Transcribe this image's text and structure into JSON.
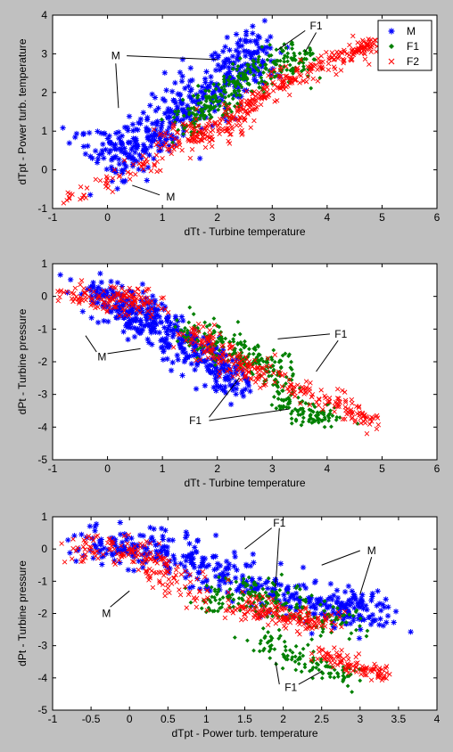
{
  "figure_background": "#c0c0c0",
  "marker_colors": {
    "M": "#0000ff",
    "F1": "#008000",
    "F2": "#ff0000"
  },
  "chart_data": [
    {
      "type": "scatter",
      "xlabel": "dTt - Turbine temperature",
      "ylabel": "dTpt - Power turb. temperature",
      "xlim": [
        -1,
        6
      ],
      "ylim": [
        -1,
        4
      ],
      "xticks": [
        "-1",
        "0",
        "1",
        "2",
        "3",
        "4",
        "5",
        "6"
      ],
      "yticks": [
        "-1",
        "0",
        "1",
        "2",
        "3",
        "4"
      ],
      "legend": {
        "position": "top-right",
        "entries": [
          "M",
          "F1",
          "F2"
        ]
      },
      "series": [
        {
          "name": "M",
          "marker": "asterisk",
          "color": "#0000ff",
          "clusters": [
            {
              "x": [
                0.0,
                0.8,
                1.5,
                2.3,
                2.8
              ],
              "y": [
                0.2,
                0.9,
                1.6,
                2.5,
                3.1
              ],
              "count": 420,
              "spread": 0.35
            },
            {
              "x": [
                -0.5,
                0.4
              ],
              "y": [
                0.8,
                0.4
              ],
              "count": 40,
              "spread": 0.25
            }
          ]
        },
        {
          "name": "F1",
          "marker": "diamond",
          "color": "#008000",
          "clusters": [
            {
              "x": [
                1.3,
                2.0,
                2.7,
                3.6
              ],
              "y": [
                1.1,
                1.8,
                2.6,
                2.9
              ],
              "count": 300,
              "spread": 0.25
            }
          ]
        },
        {
          "name": "F2",
          "marker": "x",
          "color": "#ff0000",
          "clusters": [
            {
              "x": [
                -0.8,
                0.5,
                1.0
              ],
              "y": [
                -0.8,
                0.0,
                0.3
              ],
              "count": 50,
              "spread": 0.12
            },
            {
              "x": [
                1.0,
                1.8,
                2.6
              ],
              "y": [
                0.7,
                0.9,
                1.6
              ],
              "count": 170,
              "spread": 0.2
            },
            {
              "x": [
                2.6,
                3.6,
                4.7
              ],
              "y": [
                1.7,
                2.6,
                3.1
              ],
              "count": 170,
              "spread": 0.15
            },
            {
              "x": [
                4.4,
                4.9
              ],
              "y": [
                3.0,
                3.3
              ],
              "count": 40,
              "spread": 0.08
            }
          ]
        }
      ],
      "annotations": [
        {
          "text": "M",
          "at": [
            0.15,
            2.95
          ],
          "lines": [
            [
              [
                0.35,
                2.95
              ],
              [
                2.0,
                2.85
              ]
            ],
            [
              [
                0.15,
                2.75
              ],
              [
                0.2,
                1.6
              ]
            ]
          ]
        },
        {
          "text": "M",
          "at": [
            1.15,
            -0.7
          ],
          "lines": [
            [
              [
                0.95,
                -0.65
              ],
              [
                0.45,
                -0.4
              ]
            ]
          ]
        },
        {
          "text": "F1",
          "at": [
            3.8,
            3.72
          ],
          "lines": [
            [
              [
                3.6,
                3.6
              ],
              [
                3.1,
                3.1
              ]
            ],
            [
              [
                3.8,
                3.55
              ],
              [
                3.6,
                3.05
              ]
            ]
          ]
        }
      ]
    },
    {
      "type": "scatter",
      "xlabel": "dTt - Turbine temperature",
      "ylabel": "dPt - Turbine pressure",
      "xlim": [
        -1,
        6
      ],
      "ylim": [
        -5,
        1
      ],
      "xticks": [
        "-1",
        "0",
        "1",
        "2",
        "3",
        "4",
        "5",
        "6"
      ],
      "yticks": [
        "-5",
        "-4",
        "-3",
        "-2",
        "-1",
        "0",
        "1"
      ],
      "series": [
        {
          "name": "M",
          "marker": "asterisk",
          "color": "#0000ff",
          "clusters": [
            {
              "x": [
                -0.3,
                0.5,
                1.2,
                1.8,
                2.3
              ],
              "y": [
                0.2,
                -0.5,
                -1.1,
                -1.9,
                -2.6
              ],
              "count": 420,
              "spread": 0.3
            }
          ]
        },
        {
          "name": "F1",
          "marker": "diamond",
          "color": "#008000",
          "clusters": [
            {
              "x": [
                1.5,
                2.5,
                3.2
              ],
              "y": [
                -1.0,
                -1.8,
                -2.4
              ],
              "count": 190,
              "spread": 0.25
            },
            {
              "x": [
                3.0,
                3.6,
                4.1
              ],
              "y": [
                -2.9,
                -3.6,
                -3.8
              ],
              "count": 110,
              "spread": 0.2
            }
          ]
        },
        {
          "name": "F2",
          "marker": "x",
          "color": "#ff0000",
          "clusters": [
            {
              "x": [
                -0.8,
                0.3,
                0.9
              ],
              "y": [
                0.0,
                -0.1,
                -0.2
              ],
              "count": 140,
              "spread": 0.22
            },
            {
              "x": [
                1.5,
                2.2,
                3.0
              ],
              "y": [
                -1.1,
                -1.9,
                -2.5
              ],
              "count": 150,
              "spread": 0.22
            },
            {
              "x": [
                3.2,
                4.2,
                4.9
              ],
              "y": [
                -2.6,
                -3.3,
                -3.9
              ],
              "count": 110,
              "spread": 0.15
            }
          ]
        }
      ],
      "annotations": [
        {
          "text": "M",
          "at": [
            -0.1,
            -1.85
          ],
          "lines": [
            [
              [
                -0.2,
                -1.7
              ],
              [
                -0.4,
                -1.2
              ]
            ],
            [
              [
                0.0,
                -1.75
              ],
              [
                0.6,
                -1.6
              ]
            ]
          ]
        },
        {
          "text": "F1",
          "at": [
            4.25,
            -1.15
          ],
          "lines": [
            [
              [
                4.05,
                -1.15
              ],
              [
                3.1,
                -1.3
              ]
            ],
            [
              [
                4.2,
                -1.35
              ],
              [
                3.8,
                -2.3
              ]
            ]
          ]
        },
        {
          "text": "F1",
          "at": [
            1.6,
            -3.8
          ],
          "lines": [
            [
              [
                1.85,
                -3.7
              ],
              [
                2.4,
                -2.5
              ]
            ],
            [
              [
                1.85,
                -3.8
              ],
              [
                3.3,
                -3.45
              ]
            ]
          ]
        }
      ]
    },
    {
      "type": "scatter",
      "xlabel": "dTpt - Power turb. temperature",
      "ylabel": "dPt - Turbine pressure",
      "xlim": [
        -1,
        4
      ],
      "ylim": [
        -5,
        1
      ],
      "xticks": [
        "-1",
        "-0.5",
        "0",
        "0.5",
        "1",
        "1.5",
        "2",
        "2.5",
        "3",
        "3.5",
        "4"
      ],
      "yticks": [
        "-5",
        "-4",
        "-3",
        "-2",
        "-1",
        "0",
        "1"
      ],
      "series": [
        {
          "name": "M",
          "marker": "asterisk",
          "color": "#0000ff",
          "clusters": [
            {
              "x": [
                -0.6,
                0.3,
                1.0,
                1.8,
                2.6,
                3.2
              ],
              "y": [
                0.0,
                0.1,
                -0.6,
                -1.3,
                -1.8,
                -2.0
              ],
              "count": 440,
              "spread": 0.3
            }
          ]
        },
        {
          "name": "F1",
          "marker": "diamond",
          "color": "#008000",
          "clusters": [
            {
              "x": [
                0.9,
                1.5,
                2.2,
                2.9
              ],
              "y": [
                -1.6,
                -1.3,
                -1.9,
                -2.4
              ],
              "count": 200,
              "spread": 0.25
            },
            {
              "x": [
                1.7,
                2.4,
                3.0
              ],
              "y": [
                -2.9,
                -3.6,
                -3.9
              ],
              "count": 110,
              "spread": 0.2
            }
          ]
        },
        {
          "name": "F2",
          "marker": "x",
          "color": "#ff0000",
          "clusters": [
            {
              "x": [
                -0.8,
                0.0,
                0.5,
                1.0
              ],
              "y": [
                0.0,
                0.0,
                -0.8,
                -1.5
              ],
              "count": 170,
              "spread": 0.22
            },
            {
              "x": [
                1.4,
                2.0,
                2.5
              ],
              "y": [
                -1.8,
                -2.0,
                -2.4
              ],
              "count": 160,
              "spread": 0.2
            },
            {
              "x": [
                2.5,
                3.0,
                3.4
              ],
              "y": [
                -3.2,
                -3.7,
                -4.0
              ],
              "count": 100,
              "spread": 0.12
            }
          ]
        }
      ],
      "annotations": [
        {
          "text": "M",
          "at": [
            -0.3,
            -2.0
          ],
          "lines": [
            [
              [
                -0.25,
                -1.8
              ],
              [
                0.0,
                -1.3
              ]
            ]
          ]
        },
        {
          "text": "F1",
          "at": [
            1.95,
            0.8
          ],
          "lines": [
            [
              [
                1.85,
                0.65
              ],
              [
                1.5,
                0.0
              ]
            ],
            [
              [
                1.95,
                0.65
              ],
              [
                1.9,
                -1.2
              ]
            ]
          ]
        },
        {
          "text": "M",
          "at": [
            3.15,
            -0.05
          ],
          "lines": [
            [
              [
                3.0,
                -0.05
              ],
              [
                2.5,
                -0.5
              ]
            ],
            [
              [
                3.15,
                -0.25
              ],
              [
                3.0,
                -1.4
              ]
            ]
          ]
        },
        {
          "text": "F1",
          "at": [
            2.1,
            -4.3
          ],
          "lines": [
            [
              [
                1.95,
                -4.2
              ],
              [
                1.9,
                -3.5
              ]
            ],
            [
              [
                2.2,
                -4.2
              ],
              [
                2.5,
                -3.8
              ]
            ]
          ]
        }
      ]
    }
  ]
}
